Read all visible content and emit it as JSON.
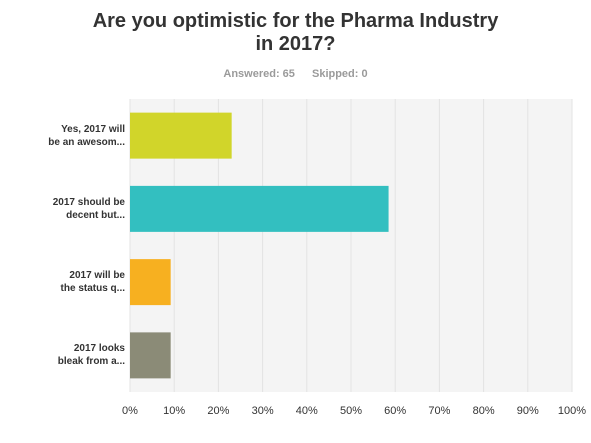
{
  "title_lines": [
    "Are you optimistic for the Pharma Industry",
    "in 2017?"
  ],
  "stats": {
    "answered": "Answered: 65",
    "skipped": "Skipped: 0"
  },
  "colors": {
    "plot_bg": "#f4f4f4",
    "grid": "#e3e3e3",
    "tick_text": "#333333"
  },
  "chart_data": {
    "type": "bar",
    "orientation": "horizontal",
    "categories": [
      [
        "Yes, 2017 will",
        "be an awesom..."
      ],
      [
        "2017 should be",
        "decent but..."
      ],
      [
        "2017 will be",
        "the status q..."
      ],
      [
        "2017 looks",
        "bleak from a..."
      ]
    ],
    "values": [
      23,
      58.5,
      9.2,
      9.2
    ],
    "bar_colors": [
      "#d1d52a",
      "#33bfc0",
      "#f7b020",
      "#8b8b77"
    ],
    "xlim": [
      0,
      100
    ],
    "xticks": [
      "0%",
      "10%",
      "20%",
      "30%",
      "40%",
      "50%",
      "60%",
      "70%",
      "80%",
      "90%",
      "100%"
    ],
    "grid": true
  }
}
